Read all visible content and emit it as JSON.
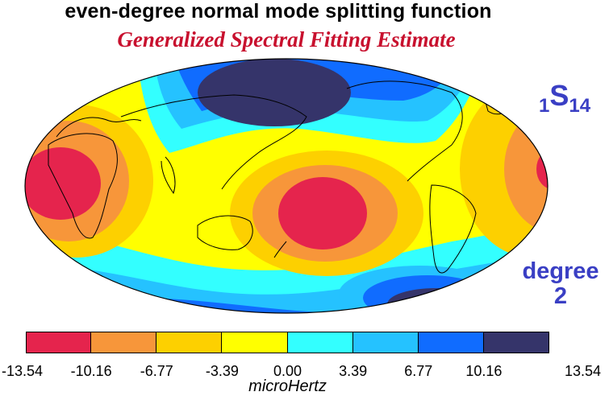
{
  "title": "even-degree normal mode splitting function",
  "subtitle": "Generalized Spectral Fitting Estimate",
  "mode": {
    "n": "1",
    "type": "S",
    "l": "14"
  },
  "degree_label": {
    "word": "degree",
    "value": "2"
  },
  "colorbar": {
    "unit": "microHertz",
    "ticks": [
      "-13.54",
      "-10.16",
      "-6.77",
      "-3.39",
      "0.00",
      "3.39",
      "6.77",
      "10.16",
      "13.54"
    ],
    "colors": [
      "#e5244d",
      "#f7963a",
      "#fdd000",
      "#ffff00",
      "#33ffff",
      "#25c2ff",
      "#106cff",
      "#35346a"
    ]
  },
  "map": {
    "projection": "Hammer/Mollweide (ellipse)",
    "anomalies": [
      {
        "name": "central-pacific-low",
        "color": "#e5244d"
      },
      {
        "name": "africa-low",
        "color": "#e5244d"
      },
      {
        "name": "north-pole-high",
        "color": "#35346a"
      },
      {
        "name": "south-atlantic-high",
        "color": "#35346a"
      }
    ]
  }
}
